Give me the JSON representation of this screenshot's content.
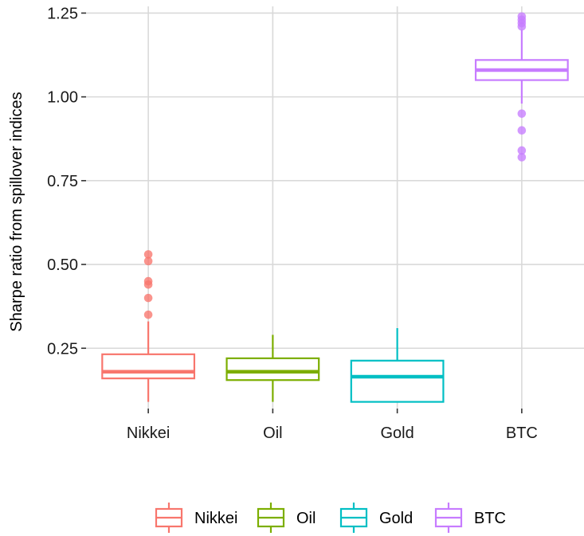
{
  "chart_data": {
    "type": "boxplot",
    "ylabel": "Sharpe ratio from spillover indices",
    "xlabel": "",
    "ylim": [
      0.07,
      1.27
    ],
    "y_ticks": [
      0.25,
      0.5,
      0.75,
      1.0,
      1.25
    ],
    "y_tick_labels": [
      "0.25",
      "0.50",
      "0.75",
      "1.00",
      "1.25"
    ],
    "grid": true,
    "legend_position": "bottom",
    "categories": [
      "Nikkei",
      "Oil",
      "Gold",
      "BTC"
    ],
    "series": [
      {
        "name": "Nikkei",
        "color": "#F8766D",
        "whisker_low": 0.09,
        "q1": 0.16,
        "median": 0.18,
        "q3": 0.232,
        "whisker_high": 0.33,
        "outliers": [
          0.35,
          0.4,
          0.44,
          0.45,
          0.51,
          0.53
        ]
      },
      {
        "name": "Oil",
        "color": "#7CAE00",
        "whisker_low": 0.09,
        "q1": 0.155,
        "median": 0.18,
        "q3": 0.22,
        "whisker_high": 0.29,
        "outliers": []
      },
      {
        "name": "Gold",
        "color": "#00BFC4",
        "whisker_low": 0.09,
        "q1": 0.09,
        "median": 0.165,
        "q3": 0.213,
        "whisker_high": 0.31,
        "outliers": []
      },
      {
        "name": "BTC",
        "color": "#C77CFF",
        "whisker_low": 0.98,
        "q1": 1.05,
        "median": 1.08,
        "q3": 1.11,
        "whisker_high": 1.2,
        "outliers": [
          0.82,
          0.84,
          0.9,
          0.95,
          1.21,
          1.22,
          1.23,
          1.24
        ]
      }
    ]
  }
}
